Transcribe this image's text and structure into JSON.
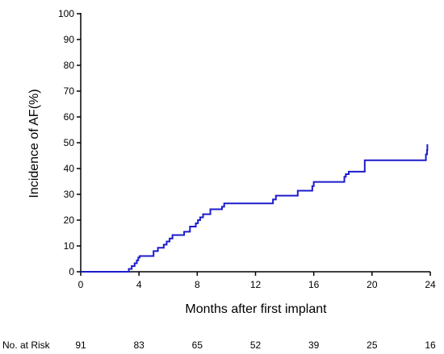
{
  "chart_data": {
    "type": "line",
    "title": "",
    "xlabel": "Months after first implant",
    "ylabel": "Incidence of AF(%)",
    "xlim": [
      0,
      24
    ],
    "ylim": [
      0,
      100
    ],
    "x_ticks": [
      0,
      4,
      8,
      12,
      16,
      20,
      24
    ],
    "y_ticks": [
      0,
      10,
      20,
      30,
      40,
      50,
      60,
      70,
      80,
      90,
      100
    ],
    "grid": false,
    "legend": "none",
    "line_color": "#1c1ccc",
    "series": [
      {
        "step": true,
        "x": [
          0,
          3.3,
          3.5,
          3.7,
          3.85,
          3.95,
          4.05,
          5.0,
          5.3,
          5.7,
          5.9,
          6.1,
          6.3,
          6.6,
          7.1,
          7.5,
          7.9,
          8.05,
          8.2,
          8.4,
          8.9,
          9.7,
          9.85,
          13.2,
          13.4,
          14.9,
          15.9,
          16.0,
          18.1,
          18.2,
          18.4,
          19.5,
          23.7,
          23.78,
          23.8
        ],
        "y": [
          0,
          1.1,
          2.2,
          3.3,
          4.4,
          5.5,
          6.1,
          8.0,
          9.3,
          10.5,
          11.7,
          12.9,
          14.2,
          14.2,
          15.5,
          17.5,
          18.8,
          20.0,
          21.1,
          22.3,
          24.2,
          25.2,
          26.5,
          28.0,
          29.5,
          31.4,
          33.2,
          34.8,
          36.8,
          37.8,
          38.8,
          43.2,
          45.5,
          47.2,
          49.4
        ],
        "end_x": 23.8
      }
    ],
    "at_risk": {
      "label": "No. at Risk",
      "x": [
        0,
        4,
        8,
        12,
        16,
        20,
        24
      ],
      "values": [
        "91",
        "83",
        "65",
        "52",
        "39",
        "25",
        "16"
      ]
    }
  }
}
